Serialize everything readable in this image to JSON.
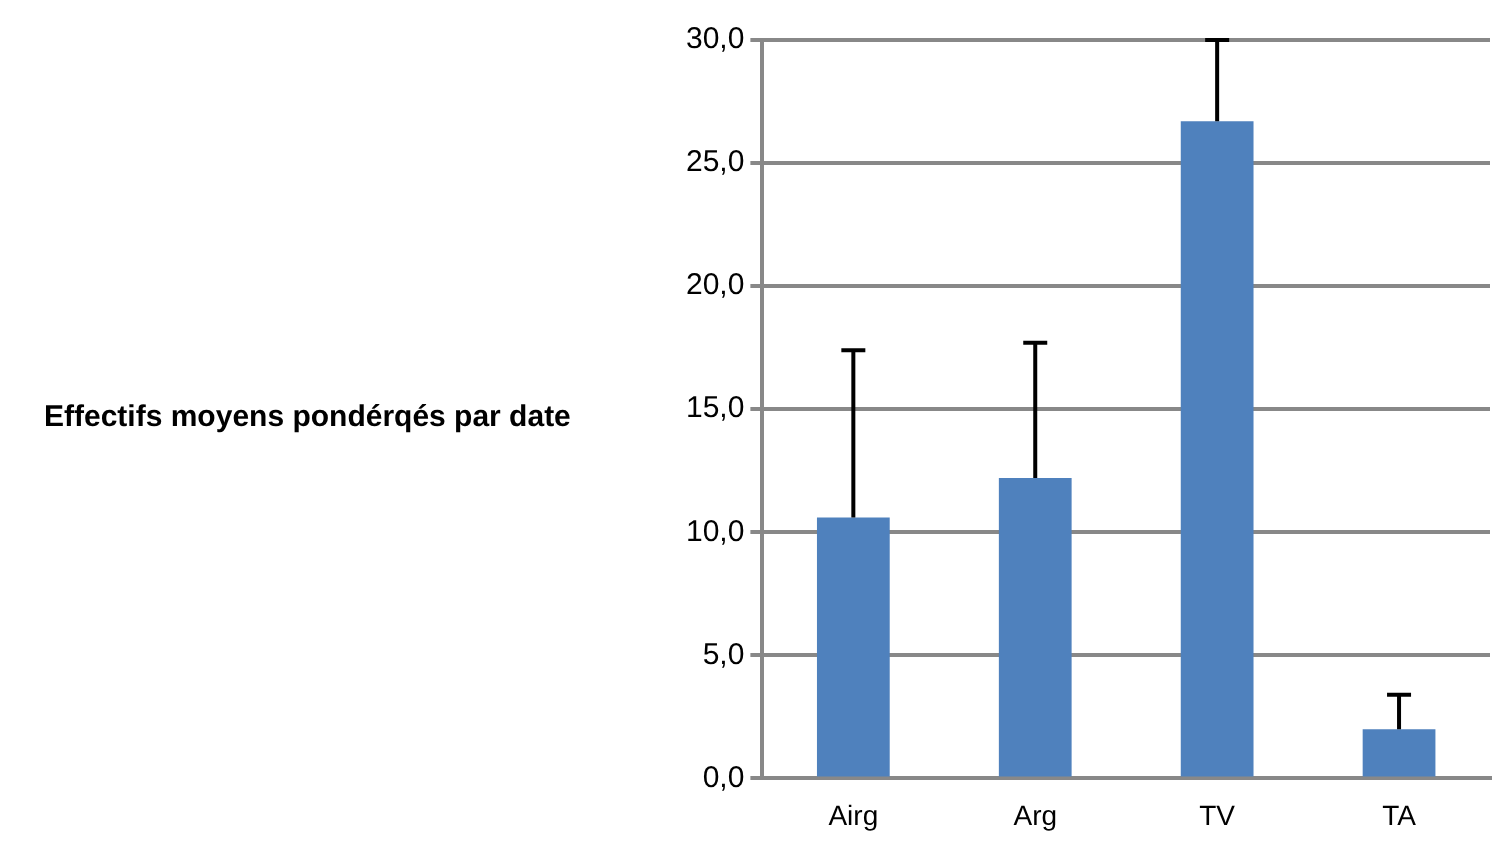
{
  "chart_data": {
    "type": "bar",
    "ylabel": "Effectifs moyens pondérqés par date",
    "categories": [
      "Airg",
      "Arg",
      "TV",
      "TA"
    ],
    "values": [
      10.6,
      12.2,
      26.7,
      2.0
    ],
    "errors": [
      [
        10.6,
        17.4
      ],
      [
        12.2,
        17.7
      ],
      [
        26.7,
        30.0
      ],
      [
        2.0,
        3.4
      ]
    ],
    "color": "#4f81bd",
    "ylim": [
      0,
      30
    ],
    "yticks": [
      {
        "value": 0,
        "label": "0,0"
      },
      {
        "value": 5,
        "label": "5,0"
      },
      {
        "value": 10,
        "label": "10,0"
      },
      {
        "value": 15,
        "label": "15,0"
      },
      {
        "value": 20,
        "label": "20,0"
      },
      {
        "value": 25,
        "label": "25,0"
      },
      {
        "value": 30,
        "label": "30,0"
      }
    ],
    "grid": "y",
    "legend": false
  }
}
